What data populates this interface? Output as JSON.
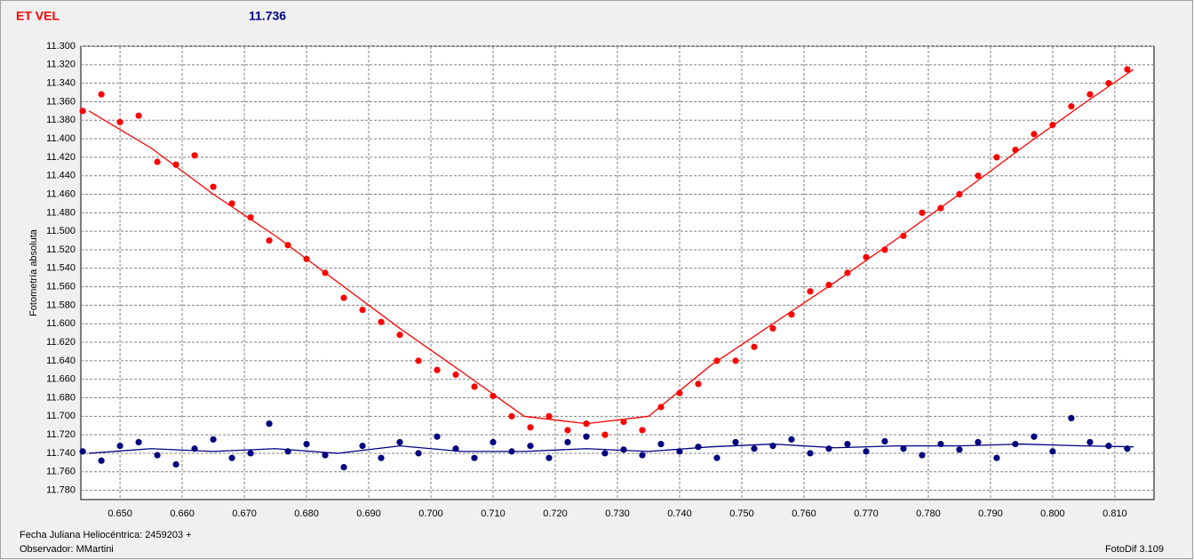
{
  "chart_data": {
    "type": "scatter",
    "title": "ET VEL",
    "reference_magnitude": "11.736",
    "y_label": "Fotometría absoluta",
    "x_label": "Fecha Juliana Heliocéntrica: 2459203 +",
    "observer": "Observador: MMartini",
    "software": "FotoDif 3.109",
    "grid": true,
    "xlim": [
      0.6437,
      0.8163
    ],
    "ylim": [
      11.79,
      11.3
    ],
    "xticks": [
      {
        "value": 0.65,
        "label": "0.650"
      },
      {
        "value": 0.66,
        "label": "0.660"
      },
      {
        "value": 0.67,
        "label": "0.670"
      },
      {
        "value": 0.68,
        "label": "0.680"
      },
      {
        "value": 0.69,
        "label": "0.690"
      },
      {
        "value": 0.7,
        "label": "0.700"
      },
      {
        "value": 0.71,
        "label": "0.710"
      },
      {
        "value": 0.72,
        "label": "0.720"
      },
      {
        "value": 0.73,
        "label": "0.730"
      },
      {
        "value": 0.74,
        "label": "0.740"
      },
      {
        "value": 0.75,
        "label": "0.750"
      },
      {
        "value": 0.76,
        "label": "0.760"
      },
      {
        "value": 0.77,
        "label": "0.770"
      },
      {
        "value": 0.78,
        "label": "0.780"
      },
      {
        "value": 0.79,
        "label": "0.790"
      },
      {
        "value": 0.8,
        "label": "0.800"
      },
      {
        "value": 0.81,
        "label": "0.810"
      }
    ],
    "yticks": [
      {
        "value": 11.3,
        "label": "11.300"
      },
      {
        "value": 11.32,
        "label": "11.320"
      },
      {
        "value": 11.34,
        "label": "11.340"
      },
      {
        "value": 11.36,
        "label": "11.360"
      },
      {
        "value": 11.38,
        "label": "11.380"
      },
      {
        "value": 11.4,
        "label": "11.400"
      },
      {
        "value": 11.42,
        "label": "11.420"
      },
      {
        "value": 11.44,
        "label": "11.440"
      },
      {
        "value": 11.46,
        "label": "11.460"
      },
      {
        "value": 11.48,
        "label": "11.480"
      },
      {
        "value": 11.5,
        "label": "11.500"
      },
      {
        "value": 11.52,
        "label": "11.520"
      },
      {
        "value": 11.54,
        "label": "11.540"
      },
      {
        "value": 11.56,
        "label": "11.560"
      },
      {
        "value": 11.58,
        "label": "11.580"
      },
      {
        "value": 11.6,
        "label": "11.600"
      },
      {
        "value": 11.62,
        "label": "11.620"
      },
      {
        "value": 11.64,
        "label": "11.640"
      },
      {
        "value": 11.66,
        "label": "11.660"
      },
      {
        "value": 11.68,
        "label": "11.680"
      },
      {
        "value": 11.7,
        "label": "11.700"
      },
      {
        "value": 11.72,
        "label": "11.720"
      },
      {
        "value": 11.74,
        "label": "11.740"
      },
      {
        "value": 11.76,
        "label": "11.760"
      },
      {
        "value": 11.78,
        "label": "11.780"
      }
    ],
    "series": [
      {
        "color": "#ff0000",
        "style": "markers",
        "x": [
          0.644,
          0.647,
          0.65,
          0.653,
          0.656,
          0.659,
          0.662,
          0.665,
          0.668,
          0.671,
          0.674,
          0.677,
          0.68,
          0.683,
          0.686,
          0.689,
          0.692,
          0.695,
          0.698,
          0.701,
          0.704,
          0.707,
          0.71,
          0.713,
          0.716,
          0.719,
          0.722,
          0.725,
          0.728,
          0.731,
          0.734,
          0.737,
          0.74,
          0.743,
          0.746,
          0.749,
          0.752,
          0.755,
          0.758,
          0.761,
          0.764,
          0.767,
          0.77,
          0.773,
          0.776,
          0.779,
          0.782,
          0.785,
          0.788,
          0.791,
          0.794,
          0.797,
          0.8,
          0.803,
          0.806,
          0.809,
          0.812
        ],
        "values": [
          11.37,
          11.352,
          11.382,
          11.375,
          11.425,
          11.428,
          11.418,
          11.452,
          11.47,
          11.485,
          11.51,
          11.515,
          11.53,
          11.545,
          11.572,
          11.585,
          11.598,
          11.612,
          11.64,
          11.65,
          11.655,
          11.668,
          11.678,
          11.7,
          11.712,
          11.7,
          11.715,
          11.708,
          11.72,
          11.706,
          11.715,
          11.69,
          11.675,
          11.665,
          11.64,
          11.64,
          11.625,
          11.605,
          11.59,
          11.565,
          11.558,
          11.545,
          11.528,
          11.52,
          11.505,
          11.48,
          11.475,
          11.46,
          11.44,
          11.42,
          11.412,
          11.395,
          11.385,
          11.365,
          11.352,
          11.34,
          11.325
        ]
      },
      {
        "color": "#000080",
        "style": "markers",
        "x": [
          0.644,
          0.647,
          0.65,
          0.653,
          0.656,
          0.659,
          0.662,
          0.665,
          0.668,
          0.671,
          0.674,
          0.677,
          0.68,
          0.683,
          0.686,
          0.689,
          0.692,
          0.695,
          0.698,
          0.701,
          0.704,
          0.707,
          0.71,
          0.713,
          0.716,
          0.719,
          0.722,
          0.725,
          0.728,
          0.731,
          0.734,
          0.737,
          0.74,
          0.743,
          0.746,
          0.749,
          0.752,
          0.755,
          0.758,
          0.761,
          0.764,
          0.767,
          0.77,
          0.773,
          0.776,
          0.779,
          0.782,
          0.785,
          0.788,
          0.791,
          0.794,
          0.797,
          0.8,
          0.803,
          0.806,
          0.809,
          0.812
        ],
        "values": [
          11.738,
          11.748,
          11.732,
          11.728,
          11.742,
          11.752,
          11.735,
          11.725,
          11.745,
          11.74,
          11.708,
          11.738,
          11.73,
          11.742,
          11.755,
          11.732,
          11.745,
          11.728,
          11.74,
          11.722,
          11.735,
          11.745,
          11.728,
          11.738,
          11.732,
          11.745,
          11.728,
          11.722,
          11.74,
          11.736,
          11.742,
          11.73,
          11.738,
          11.733,
          11.745,
          11.728,
          11.735,
          11.732,
          11.725,
          11.74,
          11.735,
          11.73,
          11.738,
          11.727,
          11.735,
          11.742,
          11.73,
          11.736,
          11.728,
          11.745,
          11.73,
          11.722,
          11.738,
          11.702,
          11.728,
          11.732,
          11.735
        ]
      },
      {
        "color": "#ff0000",
        "style": "line",
        "x": [
          0.645,
          0.655,
          0.665,
          0.675,
          0.685,
          0.695,
          0.705,
          0.715,
          0.725,
          0.735,
          0.745,
          0.755,
          0.765,
          0.775,
          0.785,
          0.795,
          0.805,
          0.813
        ],
        "values": [
          11.37,
          11.41,
          11.46,
          11.505,
          11.555,
          11.605,
          11.652,
          11.7,
          11.708,
          11.7,
          11.645,
          11.6,
          11.555,
          11.508,
          11.46,
          11.41,
          11.362,
          11.325
        ]
      },
      {
        "color": "#000080",
        "style": "line",
        "x": [
          0.645,
          0.655,
          0.665,
          0.675,
          0.685,
          0.695,
          0.705,
          0.715,
          0.725,
          0.735,
          0.745,
          0.755,
          0.765,
          0.775,
          0.785,
          0.795,
          0.805,
          0.813
        ],
        "values": [
          11.74,
          11.735,
          11.738,
          11.735,
          11.74,
          11.732,
          11.738,
          11.738,
          11.735,
          11.738,
          11.733,
          11.73,
          11.734,
          11.732,
          11.732,
          11.73,
          11.732,
          11.733
        ]
      }
    ]
  }
}
